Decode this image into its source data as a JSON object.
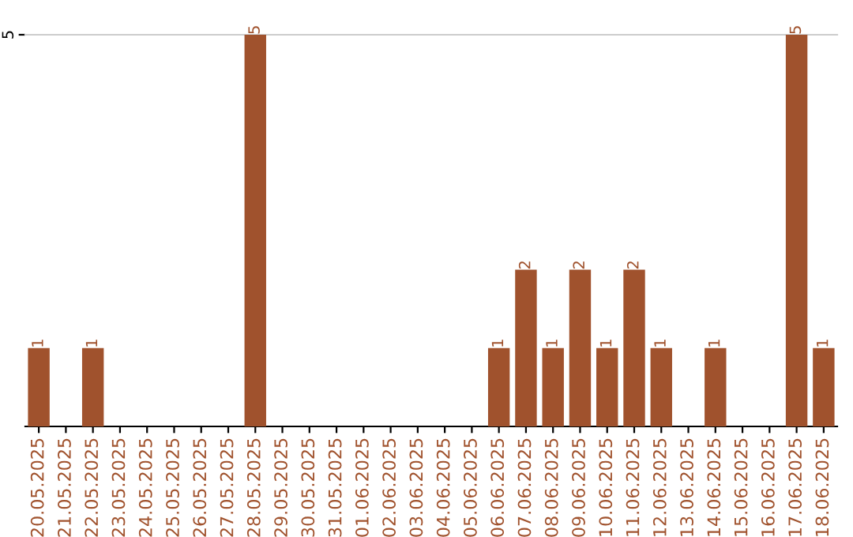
{
  "chart_data": {
    "type": "bar",
    "categories": [
      "20.05.2025",
      "21.05.2025",
      "22.05.2025",
      "23.05.2025",
      "24.05.2025",
      "25.05.2025",
      "26.05.2025",
      "27.05.2025",
      "28.05.2025",
      "29.05.2025",
      "30.05.2025",
      "31.05.2025",
      "01.06.2025",
      "02.06.2025",
      "03.06.2025",
      "04.06.2025",
      "05.06.2025",
      "06.06.2025",
      "07.06.2025",
      "08.06.2025",
      "09.06.2025",
      "10.06.2025",
      "11.06.2025",
      "12.06.2025",
      "13.06.2025",
      "14.06.2025",
      "15.06.2025",
      "16.06.2025",
      "17.06.2025",
      "18.06.2025"
    ],
    "values": [
      1,
      0,
      1,
      0,
      0,
      0,
      0,
      0,
      5,
      0,
      0,
      0,
      0,
      0,
      0,
      0,
      0,
      1,
      2,
      1,
      2,
      1,
      2,
      1,
      0,
      1,
      0,
      0,
      5,
      1
    ],
    "value_labels": [
      "1",
      null,
      "1",
      null,
      null,
      null,
      null,
      null,
      "5",
      null,
      null,
      null,
      null,
      null,
      null,
      null,
      null,
      "1",
      "2",
      "1",
      "2",
      "1",
      "2",
      "1",
      null,
      "1",
      null,
      null,
      "5",
      "1"
    ],
    "color": "#a0522d",
    "ylim": [
      0,
      5
    ],
    "yticks": [
      5
    ]
  }
}
